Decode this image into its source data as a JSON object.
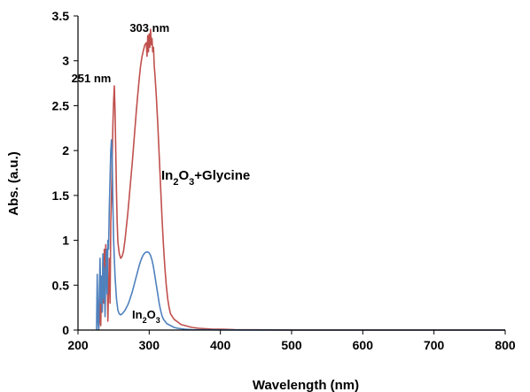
{
  "colors": {
    "glycine": "#c0504d",
    "in2o3": "#4f81bd",
    "axis": "#000000"
  },
  "chart_data": {
    "type": "line",
    "xlabel": "Wavelength (nm)",
    "ylabel": "Abs. (a.u.)",
    "xlim": [
      200,
      800
    ],
    "ylim": [
      0,
      3.5
    ],
    "xticks": [
      200,
      300,
      400,
      500,
      600,
      700,
      800
    ],
    "yticks": [
      0,
      0.5,
      1,
      1.5,
      2,
      2.5,
      3,
      3.5
    ],
    "grid": false,
    "series": [
      {
        "key": "glycine",
        "label_parts": [
          {
            "text": "In",
            "sub": false
          },
          {
            "text": "2",
            "sub": true
          },
          {
            "text": "O",
            "sub": false
          },
          {
            "text": "3",
            "sub": true
          },
          {
            "text": "+Glycine",
            "sub": false
          }
        ],
        "x": [
          229,
          230,
          231,
          232,
          233,
          234,
          235,
          236,
          237,
          238,
          239,
          240,
          241,
          242,
          243,
          244,
          245,
          246,
          247,
          248,
          249,
          250,
          251,
          252,
          253,
          254,
          255,
          256,
          258,
          260,
          262,
          264,
          266,
          268,
          270,
          272,
          274,
          276,
          278,
          280,
          282,
          284,
          286,
          288,
          290,
          292,
          294,
          296,
          297,
          298,
          299,
          300,
          301,
          302,
          303,
          304,
          305,
          306,
          307,
          308,
          310,
          312,
          314,
          316,
          318,
          320,
          322,
          324,
          326,
          328,
          330,
          335,
          340,
          345,
          350,
          360,
          370,
          380,
          390,
          400,
          420,
          450,
          500,
          600,
          700,
          800
        ],
        "y": [
          0.0,
          0.1,
          0.35,
          0.05,
          0.55,
          0.2,
          0.75,
          0.3,
          0.9,
          0.25,
          0.95,
          0.5,
          0.85,
          0.1,
          0.45,
          0.8,
          0.3,
          1.2,
          1.5,
          1.9,
          2.3,
          2.55,
          2.72,
          2.45,
          2.0,
          1.55,
          1.2,
          0.98,
          0.85,
          0.8,
          0.82,
          0.88,
          1.0,
          1.15,
          1.3,
          1.48,
          1.66,
          1.85,
          2.05,
          2.25,
          2.45,
          2.63,
          2.8,
          2.95,
          3.05,
          3.12,
          3.18,
          3.2,
          3.05,
          3.28,
          3.1,
          3.3,
          3.15,
          3.35,
          3.18,
          3.25,
          3.1,
          3.15,
          2.95,
          2.85,
          2.6,
          2.3,
          1.95,
          1.6,
          1.25,
          0.95,
          0.7,
          0.5,
          0.35,
          0.25,
          0.18,
          0.12,
          0.09,
          0.06,
          0.05,
          0.03,
          0.02,
          0.015,
          0.01,
          0.01,
          0.005,
          0.003,
          0.0,
          0.0,
          0.0,
          0.0
        ]
      },
      {
        "key": "in2o3",
        "label_parts": [
          {
            "text": "In",
            "sub": false
          },
          {
            "text": "2",
            "sub": true
          },
          {
            "text": "O",
            "sub": false
          },
          {
            "text": "3",
            "sub": true
          }
        ],
        "x": [
          226,
          227,
          228,
          229,
          230,
          231,
          232,
          233,
          234,
          235,
          236,
          237,
          238,
          239,
          240,
          241,
          242,
          243,
          244,
          245,
          246,
          247,
          248,
          249,
          250,
          252,
          254,
          256,
          258,
          260,
          262,
          264,
          266,
          268,
          270,
          272,
          274,
          276,
          278,
          280,
          282,
          284,
          286,
          288,
          290,
          292,
          294,
          296,
          298,
          300,
          302,
          304,
          306,
          308,
          310,
          312,
          314,
          316,
          318,
          320,
          325,
          330,
          335,
          340,
          350,
          360,
          380,
          400,
          450,
          500,
          600,
          700,
          800
        ],
        "y": [
          0.0,
          0.62,
          0.1,
          0.0,
          0.45,
          0.8,
          0.3,
          0.6,
          0.2,
          0.85,
          0.35,
          0.7,
          0.15,
          0.55,
          0.9,
          0.4,
          1.0,
          0.9,
          1.35,
          1.7,
          2.0,
          2.12,
          1.9,
          1.4,
          1.0,
          0.6,
          0.35,
          0.22,
          0.18,
          0.17,
          0.18,
          0.2,
          0.22,
          0.25,
          0.28,
          0.32,
          0.37,
          0.42,
          0.48,
          0.54,
          0.6,
          0.66,
          0.72,
          0.77,
          0.81,
          0.84,
          0.86,
          0.87,
          0.87,
          0.86,
          0.83,
          0.78,
          0.7,
          0.6,
          0.5,
          0.4,
          0.3,
          0.22,
          0.16,
          0.12,
          0.07,
          0.05,
          0.03,
          0.02,
          0.01,
          0.005,
          0.003,
          0.002,
          0.001,
          0.0,
          0.0,
          0.0,
          0.0
        ]
      }
    ],
    "annotations": [
      {
        "key": "peak_303",
        "text": "303 nm"
      },
      {
        "key": "peak_251",
        "text": "251 nm"
      }
    ]
  }
}
